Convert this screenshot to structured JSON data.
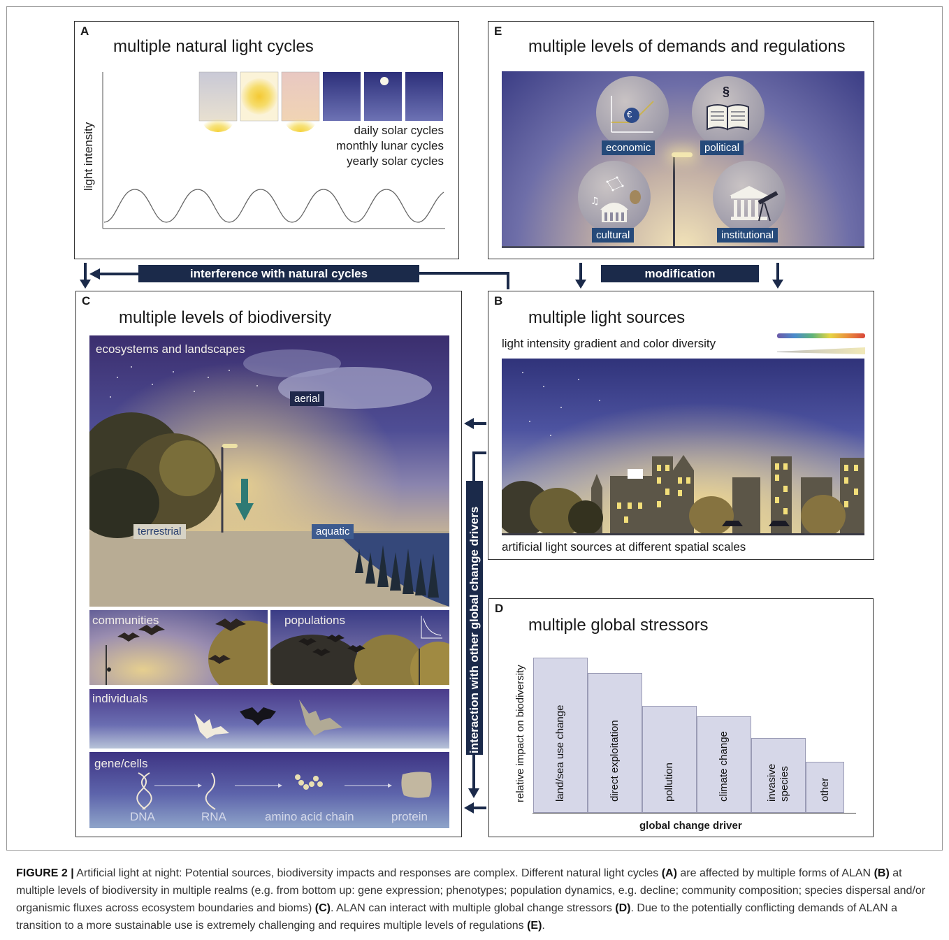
{
  "panels": {
    "a": {
      "letter": "A",
      "title": "multiple natural light cycles",
      "ylabel": "light intensity",
      "cycles": [
        "daily solar cycles",
        "monthly lunar cycles",
        "yearly solar cycles"
      ]
    },
    "e": {
      "letter": "E",
      "title": "multiple levels of demands and regulations",
      "levels": [
        "economic",
        "political",
        "cultural",
        "institutional"
      ],
      "euro_symbol": "€",
      "section_symbol": "§"
    },
    "c": {
      "letter": "C",
      "title": "multiple levels of biodiversity",
      "ecosystems_label": "ecosystems and landscapes",
      "realms": [
        "aerial",
        "terrestrial",
        "aquatic"
      ],
      "communities_label": "communities",
      "populations_label": "populations",
      "individuals_label": "individuals",
      "gene_label": "gene/cells",
      "gene_steps": [
        "DNA",
        "RNA",
        "amino acid chain",
        "protein"
      ]
    },
    "b": {
      "letter": "B",
      "title": "multiple light sources",
      "gradient_label": "light intensity gradient and color diversity",
      "bottom_label": "artificial light sources at different spatial scales"
    },
    "d": {
      "letter": "D",
      "title": "multiple global stressors",
      "ylabel": "relative impact on biodiversity",
      "xlabel": "global change driver"
    }
  },
  "connectors": {
    "interference": "interference with natural cycles",
    "modification": "modification",
    "interaction": "interaction with other global change drivers"
  },
  "chart_data": {
    "type": "bar",
    "categories": [
      "land/sea use change",
      "direct exploitation",
      "pollution",
      "climate change",
      "invasive species",
      "other"
    ],
    "values": [
      1.0,
      0.9,
      0.69,
      0.62,
      0.48,
      0.33
    ],
    "xlabel": "global change driver",
    "ylabel": "relative impact on biodiversity",
    "ylim": [
      0,
      1.0
    ]
  },
  "caption": {
    "prefix": "FIGURE 2 |",
    "text_1": " Artificial light at night: Potential sources, biodiversity impacts and responses are complex. Different natural light cycles ",
    "ref_a": "(A)",
    "text_2": " are affected by multiple forms of ALAN ",
    "ref_b": "(B)",
    "text_3": " at multiple levels of biodiversity in multiple realms (e.g. from bottom up: gene expression; phenotypes; population dynamics, e.g. decline; community composition; species dispersal and/or organismic fluxes across ecosystem boundaries and bioms) ",
    "ref_c": "(C)",
    "text_4": ". ALAN can interact with multiple global change stressors ",
    "ref_d": "(D)",
    "text_5": ". Due to the potentially conflicting demands of ALAN a transition to a more sustainable use is extremely challenging and requires multiple levels of regulations ",
    "ref_e": "(E)",
    "text_6": "."
  }
}
